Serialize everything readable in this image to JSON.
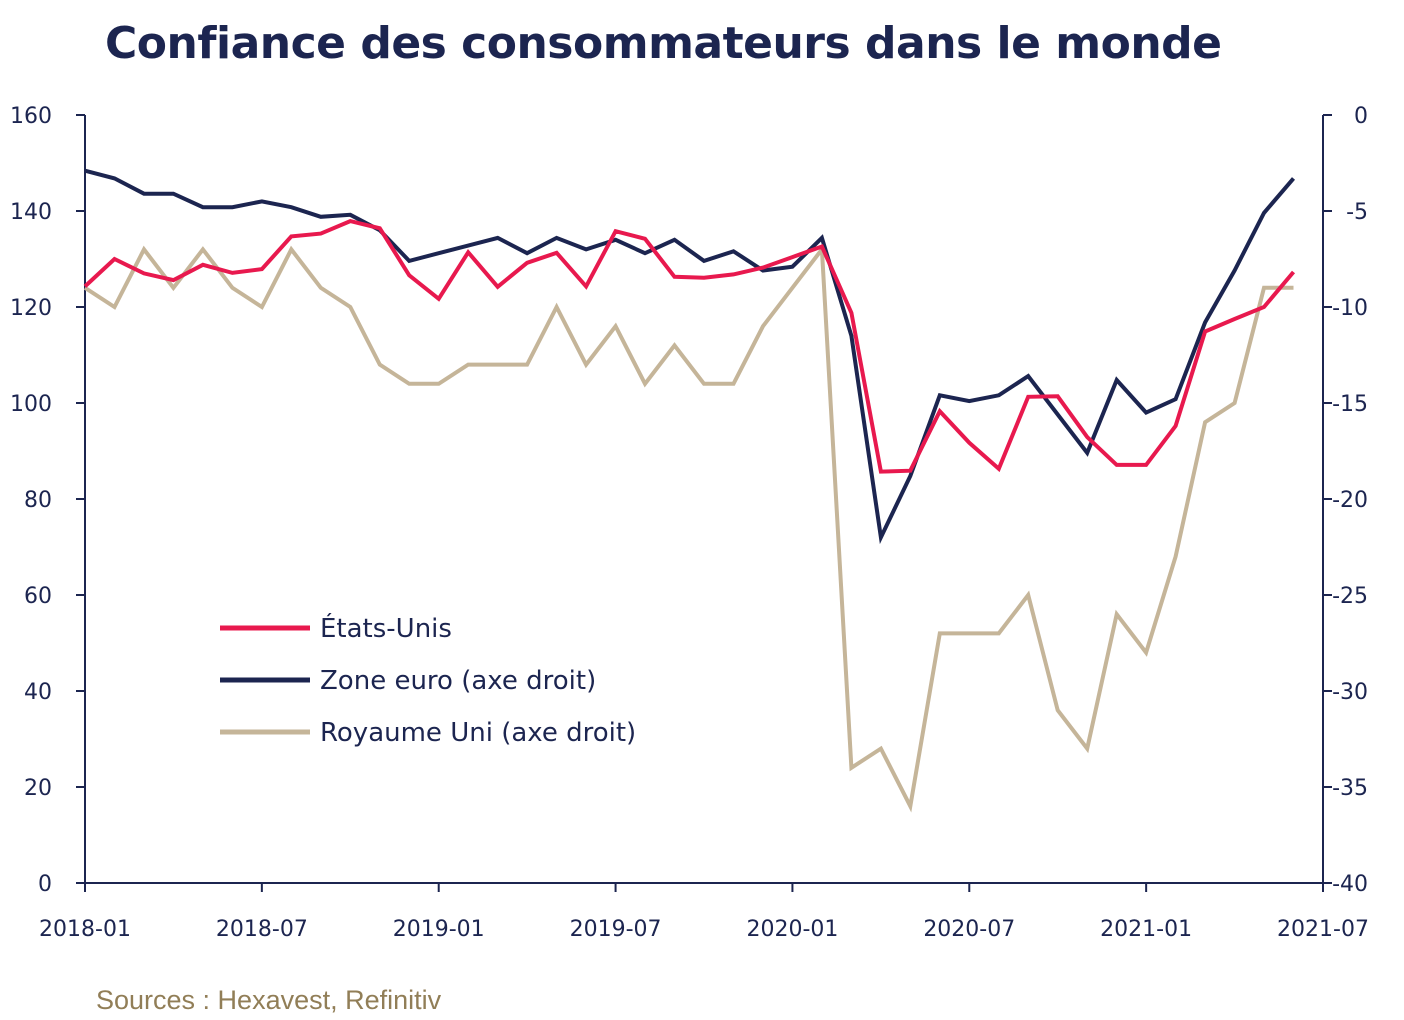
{
  "title": "Confiance des consommateurs dans le monde",
  "source": "Sources : Hexavest, Refinitiv",
  "chart_data": {
    "type": "line",
    "title": "Confiance des consommateurs dans le monde",
    "x": [
      "2018-01",
      "2018-02",
      "2018-03",
      "2018-04",
      "2018-05",
      "2018-06",
      "2018-07",
      "2018-08",
      "2018-09",
      "2018-10",
      "2018-11",
      "2018-12",
      "2019-01",
      "2019-02",
      "2019-03",
      "2019-04",
      "2019-05",
      "2019-06",
      "2019-07",
      "2019-08",
      "2019-09",
      "2019-10",
      "2019-11",
      "2019-12",
      "2020-01",
      "2020-02",
      "2020-03",
      "2020-04",
      "2020-05",
      "2020-06",
      "2020-07",
      "2020-08",
      "2020-09",
      "2020-10",
      "2020-11",
      "2020-12",
      "2021-01",
      "2021-02",
      "2021-03",
      "2021-04",
      "2021-05",
      "2021-06"
    ],
    "x_ticks": [
      "2018-01",
      "2018-07",
      "2019-01",
      "2019-07",
      "2020-01",
      "2020-07",
      "2021-01",
      "2021-07"
    ],
    "y_left": {
      "lim": [
        0,
        160
      ],
      "ticks": [
        0,
        20,
        40,
        60,
        80,
        100,
        120,
        140,
        160
      ]
    },
    "y_right": {
      "lim": [
        -40,
        0
      ],
      "ticks": [
        -40,
        -35,
        -30,
        -25,
        -20,
        -15,
        -10,
        -5,
        0
      ]
    },
    "legend_placement": "center-left",
    "series": [
      {
        "name": "États-Unis",
        "axis": "left",
        "color": "#e8194e",
        "values": [
          124.3,
          130.0,
          127.0,
          125.6,
          128.8,
          127.1,
          127.9,
          134.7,
          135.3,
          137.9,
          136.4,
          126.6,
          121.7,
          131.4,
          124.2,
          129.2,
          131.3,
          124.3,
          135.8,
          134.2,
          126.3,
          126.1,
          126.8,
          128.2,
          130.4,
          132.6,
          118.8,
          85.7,
          85.9,
          98.3,
          91.7,
          86.3,
          101.3,
          101.4,
          92.9,
          87.1,
          87.1,
          95.2,
          114.9,
          117.5,
          120.0,
          127.3
        ]
      },
      {
        "name": "Zone euro (axe droit)",
        "axis": "right",
        "color": "#1c2550",
        "values": [
          -2.9,
          -3.3,
          -4.1,
          -4.1,
          -4.8,
          -4.8,
          -4.5,
          -4.8,
          -5.3,
          -5.2,
          -6.0,
          -7.6,
          -7.2,
          -6.8,
          -6.4,
          -7.2,
          -6.4,
          -7.0,
          -6.5,
          -7.2,
          -6.5,
          -7.6,
          -7.1,
          -8.1,
          -7.9,
          -6.4,
          -11.5,
          -22.0,
          -18.8,
          -14.6,
          -14.9,
          -14.6,
          -13.6,
          -15.6,
          -17.6,
          -13.8,
          -15.5,
          -14.8,
          -10.8,
          -8.1,
          -5.1,
          -3.3
        ]
      },
      {
        "name": "Royaume Uni (axe droit)",
        "axis": "right",
        "color": "#c5b599",
        "values": [
          -9,
          -10,
          -7,
          -9,
          -7,
          -9,
          -10,
          -7,
          -9,
          -10,
          -13,
          -14,
          -14,
          -13,
          -13,
          -13,
          -10,
          -13,
          -11,
          -14,
          -12,
          -14,
          -14,
          -11,
          -9,
          -7,
          -34,
          -33,
          -36,
          -27,
          -27,
          -27,
          -25,
          -31,
          -33,
          -26,
          -28,
          -23,
          -16,
          -15,
          -9,
          -9
        ]
      }
    ]
  }
}
